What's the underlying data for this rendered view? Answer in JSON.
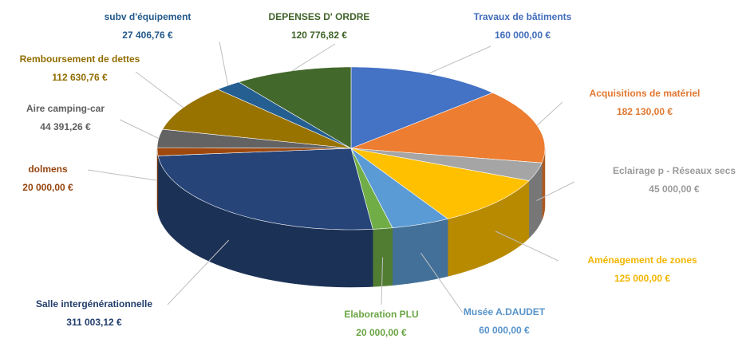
{
  "chart_data": {
    "type": "pie",
    "three_d": true,
    "categories": [
      "Travaux de bâtiments",
      "Acquisitions de matériel",
      "Eclairage p - Réseaux secs",
      "Aménagement de zones",
      "Musée A.DAUDET",
      "Elaboration PLU",
      "Salle intergénérationnelle",
      "dolmens",
      "Aire camping-car",
      "Remboursement de dettes",
      "subv d'équipement",
      "DEPENSES D' ORDRE"
    ],
    "values": [
      160000,
      182130,
      45000,
      125000,
      60000,
      20000,
      311003.12,
      20000,
      44391.26,
      112630.76,
      27406.76,
      120776.82
    ],
    "value_labels": [
      "160 000,00 €",
      "182 130,00 €",
      "45 000,00 €",
      "125 000,00 €",
      "60 000,00 €",
      "20 000,00 €",
      "311 003,12 €",
      "20 000,00 €",
      "44 391,26 €",
      "112 630,76 €",
      "27 406,76 €",
      "120 776,82 €"
    ],
    "colors": [
      "#4472c4",
      "#ed7d31",
      "#a5a5a5",
      "#ffc000",
      "#5b9bd5",
      "#70ad47",
      "#264478",
      "#9e480e",
      "#636363",
      "#997300",
      "#255e91",
      "#43682b"
    ]
  }
}
